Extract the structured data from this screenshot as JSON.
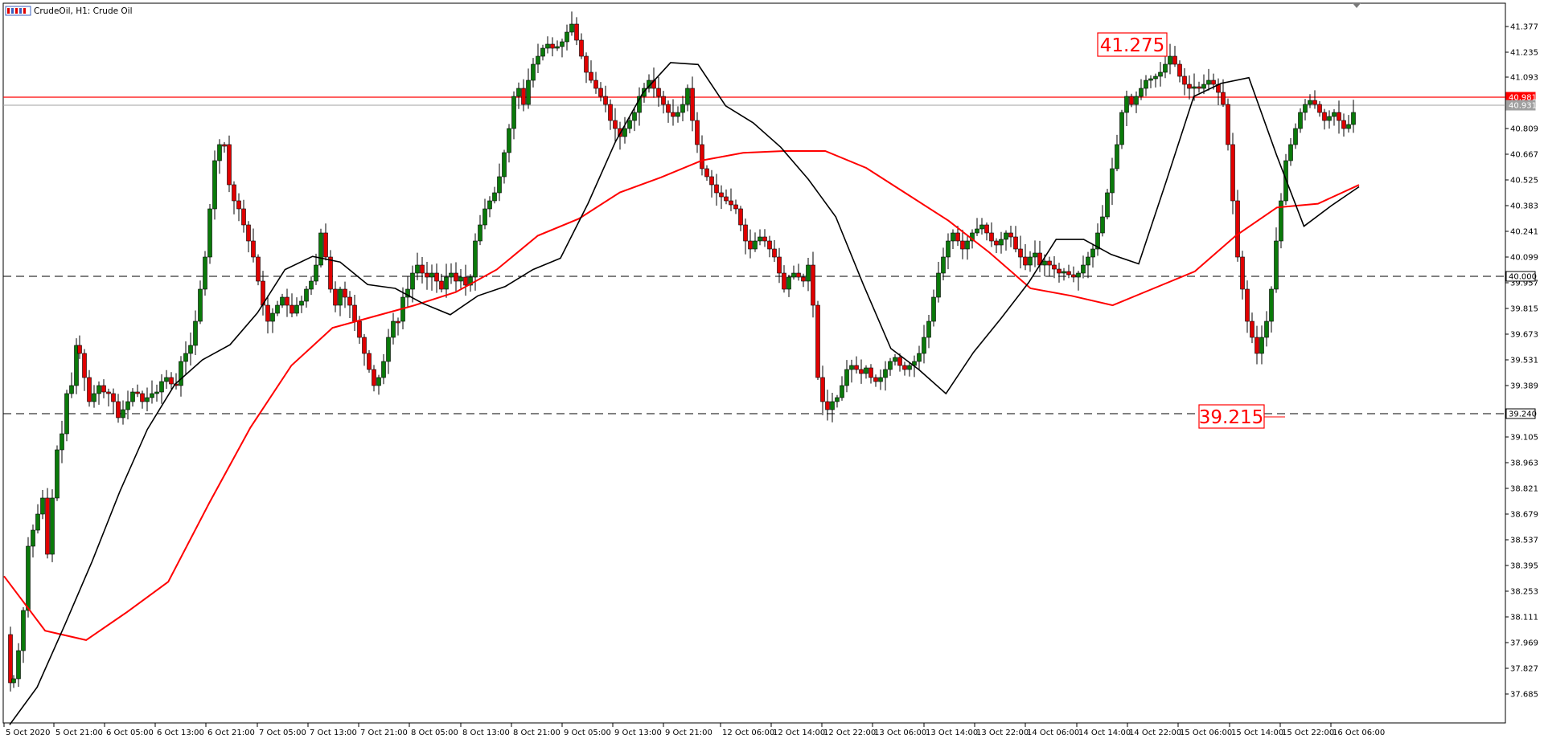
{
  "header": {
    "title": "CrudeOil, H1:  Crude Oil"
  },
  "price_axis": {
    "labels": [
      "41.377",
      "41.235",
      "41.093",
      "40.809",
      "40.667",
      "40.525",
      "40.383",
      "40.241",
      "40.099",
      "39.957",
      "39.815",
      "39.673",
      "39.531",
      "39.389",
      "39.105",
      "38.963",
      "38.821",
      "38.679",
      "38.537",
      "38.395",
      "38.253",
      "38.111",
      "37.969",
      "37.827",
      "37.685"
    ],
    "tags": [
      {
        "value": "40.981",
        "kind": "red"
      },
      {
        "value": "40.931",
        "kind": "grey"
      },
      {
        "value": "40.000",
        "kind": "white"
      },
      {
        "value": "39.240",
        "kind": "white"
      }
    ]
  },
  "time_axis": {
    "labels": [
      "5 Oct 2020",
      "5 Oct 21:00",
      "6 Oct 05:00",
      "6 Oct 13:00",
      "6 Oct 21:00",
      "7 Oct 05:00",
      "7 Oct 13:00",
      "7 Oct 21:00",
      "8 Oct 05:00",
      "8 Oct 13:00",
      "8 Oct 21:00",
      "9 Oct 05:00",
      "9 Oct 13:00",
      "9 Oct 21:00",
      "12 Oct 06:00",
      "12 Oct 14:00",
      "12 Oct 22:00",
      "13 Oct 06:00",
      "13 Oct 14:00",
      "13 Oct 22:00",
      "14 Oct 06:00",
      "14 Oct 14:00",
      "14 Oct 22:00",
      "15 Oct 06:00",
      "15 Oct 14:00",
      "15 Oct 22:00",
      "16 Oct 06:00"
    ]
  },
  "callouts": [
    {
      "label": "41.275"
    },
    {
      "label": "39.215"
    }
  ],
  "colors": {
    "bull": "#0a7a0a",
    "bear": "#e00000",
    "ma_fast": "#000000",
    "ma_slow": "#ff0000",
    "level_red": "#ff0000",
    "level_grey": "#a0a0a0",
    "dash": "#000000"
  },
  "chart_data": {
    "type": "candlestick",
    "title": "CrudeOil, H1:  Crude Oil",
    "symbol": "CrudeOil",
    "timeframe": "H1",
    "ylim": [
      37.65,
      41.45
    ],
    "levels": [
      {
        "value": 40.981,
        "style": "solid",
        "color": "red"
      },
      {
        "value": 40.931,
        "style": "solid",
        "color": "grey"
      },
      {
        "value": 40.0,
        "style": "dashed",
        "color": "black"
      },
      {
        "value": 39.24,
        "style": "dashed",
        "color": "black"
      }
    ],
    "annotations": [
      {
        "text": "41.275",
        "value": 41.275
      },
      {
        "text": "39.215",
        "value": 39.215
      }
    ],
    "series": [
      {
        "kind": "ma",
        "color": "black",
        "values": [
          37.64,
          37.84,
          38.17,
          38.51,
          38.88,
          39.21,
          39.45,
          39.58,
          39.66,
          39.83,
          40.06,
          40.13,
          40.1,
          39.98,
          39.96,
          39.88,
          39.82,
          39.92,
          39.97,
          40.06,
          40.12,
          40.41,
          40.74,
          41.0,
          41.16,
          41.15,
          40.93,
          40.84,
          40.71,
          40.54,
          40.34,
          39.98,
          39.64,
          39.53,
          39.4,
          39.62,
          39.8,
          39.99,
          40.22,
          40.22,
          40.14,
          40.09,
          40.53,
          40.98,
          41.05,
          41.08,
          40.67,
          40.29,
          40.4,
          40.5
        ]
      },
      {
        "kind": "ma",
        "color": "red",
        "values": [
          38.43,
          38.14,
          38.09,
          38.24,
          38.4,
          38.82,
          39.22,
          39.55,
          39.75,
          39.81,
          39.87,
          39.94,
          40.06,
          40.24,
          40.33,
          40.47,
          40.55,
          40.64,
          40.68,
          40.69,
          40.69,
          40.6,
          40.46,
          40.32,
          40.15,
          39.96,
          39.92,
          39.87,
          39.96,
          40.05,
          40.24,
          40.39,
          40.41,
          40.51
        ]
      }
    ]
  }
}
